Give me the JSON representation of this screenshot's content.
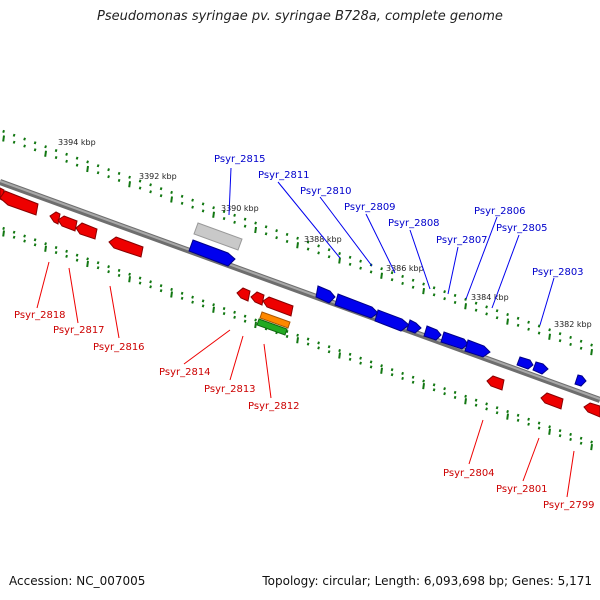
{
  "title": "Pseudomonas syringae pv. syringae B728a, complete genome",
  "footer": {
    "accession": "Accession: NC_007005",
    "stats": "Topology: circular; Length: 6,093,698 bp; Genes: 5,171"
  },
  "colors": {
    "forward_gene": "#0000ee",
    "reverse_gene": "#ee0000",
    "tick": "#117711",
    "backbone": "#808080",
    "selected_gene": "#bbbbbb",
    "orange_gene": "#ff8800",
    "green_gene": "#22aa22"
  },
  "scale_labels": [
    "3394 kbp",
    "3392 kbp",
    "3390 kbp",
    "3388 kbp",
    "3386 kbp",
    "3384 kbp",
    "3382 kbp"
  ],
  "forward_genes": [
    "Psyr_2815",
    "Psyr_2811",
    "Psyr_2810",
    "Psyr_2809",
    "Psyr_2808",
    "Psyr_2807",
    "Psyr_2806",
    "Psyr_2805",
    "Psyr_2803"
  ],
  "reverse_genes": [
    "Psyr_2818",
    "Psyr_2817",
    "Psyr_2816",
    "Psyr_2814",
    "Psyr_2813",
    "Psyr_2812",
    "Psyr_2804",
    "Psyr_2801",
    "Psyr_2799"
  ]
}
